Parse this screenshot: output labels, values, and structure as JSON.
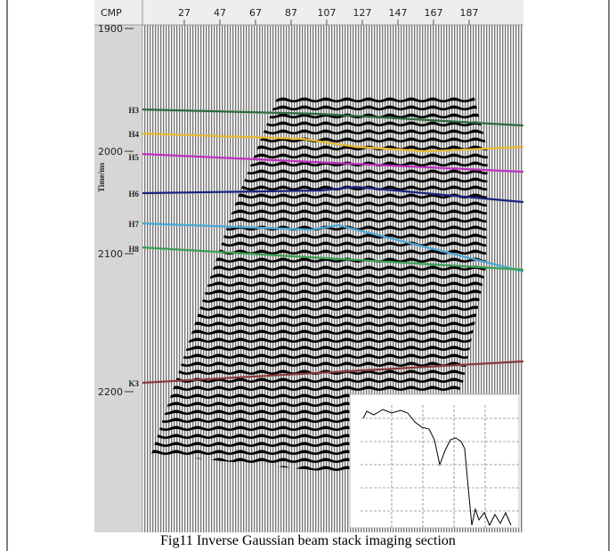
{
  "figure": {
    "cmp_label": "CMP",
    "cmp_ticks": [
      "27",
      "47",
      "67",
      "87",
      "107",
      "127",
      "147",
      "167",
      "187"
    ],
    "time_label": "Time/ms",
    "time_ticks": [
      "1900",
      "2000",
      "2100",
      "2200"
    ],
    "horizons": [
      "H3",
      "H4",
      "H5",
      "H6",
      "H7",
      "H8",
      "K3"
    ],
    "caption": "Fig11 Inverse Gaussian beam stack imaging section"
  }
}
